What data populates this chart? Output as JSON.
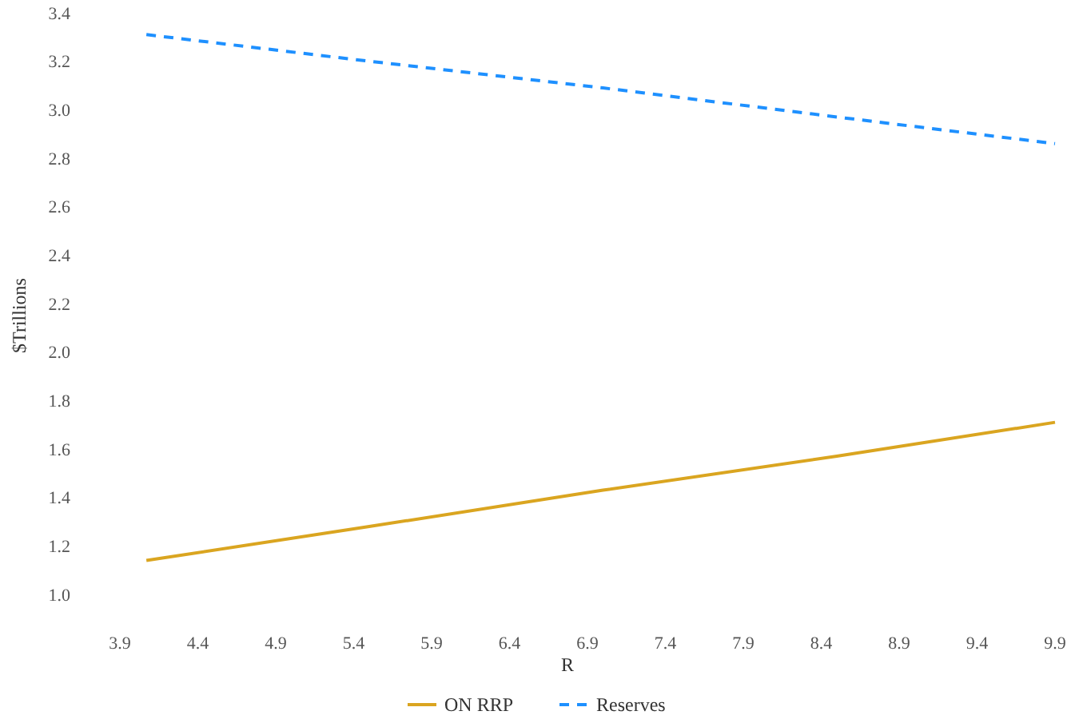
{
  "chart_data": {
    "type": "line",
    "xlabel": "R",
    "ylabel": "$Trillions",
    "x": [
      4.07,
      5.5,
      7,
      8.5,
      9.9
    ],
    "xlim": [
      3.9,
      9.9
    ],
    "ylim": [
      1.0,
      3.4
    ],
    "xticks": [
      3.9,
      4.4,
      4.9,
      5.4,
      5.9,
      6.4,
      6.9,
      7.4,
      7.9,
      8.4,
      8.9,
      9.4,
      9.9
    ],
    "yticks": [
      {
        "value": 1.0,
        "label": "1.0"
      },
      1.2,
      1.4,
      1.6,
      1.8,
      {
        "value": 2.0,
        "label": "2.0"
      },
      2.2,
      2.4,
      2.6,
      2.8,
      {
        "value": 3.0,
        "label": "3.0"
      },
      3.2,
      3.4
    ],
    "grid": false,
    "legend": "bottom",
    "marker": "none",
    "series": [
      {
        "name": "ON RRP",
        "color": "#daa520",
        "line_style": "solid",
        "values": [
          1.14,
          1.28,
          1.43,
          1.57,
          1.71
        ]
      },
      {
        "name": "Reserves",
        "color": "#1e90ff",
        "line_style": "dashed",
        "values": [
          3.31,
          3.2,
          3.09,
          2.97,
          2.86
        ]
      }
    ]
  }
}
